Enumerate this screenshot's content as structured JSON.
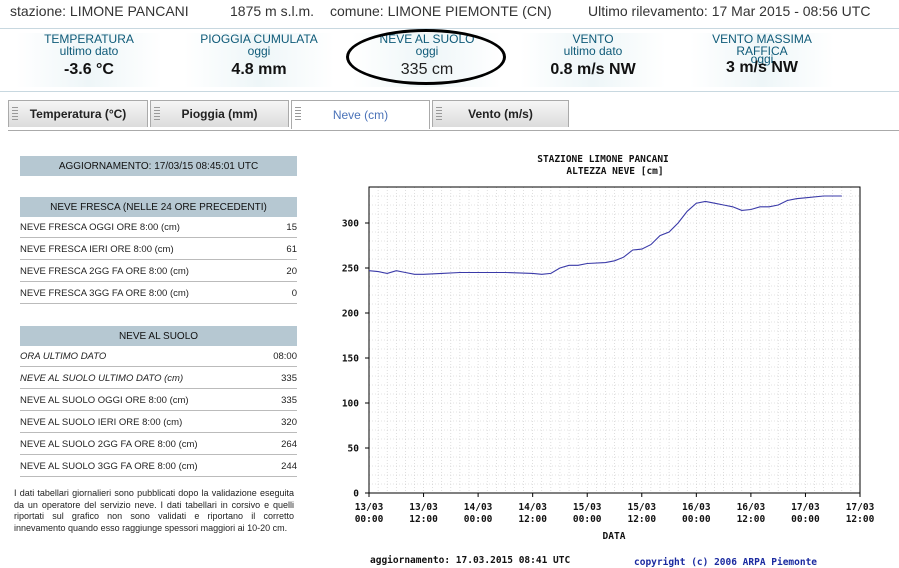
{
  "header": {
    "station": "stazione: LIMONE PANCANI",
    "altitude": "1875 m s.l.m.",
    "comune": "comune: LIMONE PIEMONTE (CN)",
    "ultimo": "Ultimo rilevamento: 17 Mar 2015 - 08:56 UTC"
  },
  "metrics": [
    {
      "title": "TEMPERATURA",
      "sub": "ultimo dato",
      "value": "-3.6 °C"
    },
    {
      "title": "PIOGGIA CUMULATA",
      "sub": "oggi",
      "value": "4.8 mm"
    },
    {
      "title": "NEVE AL SUOLO",
      "sub": "oggi",
      "value": "335 cm"
    },
    {
      "title": "VENTO",
      "sub": "ultimo dato",
      "value": "0.8 m/s NW"
    },
    {
      "title": "VENTO MASSIMA RAFFICA",
      "sub": "oggi",
      "value": "3 m/s NW"
    }
  ],
  "tabs": [
    "Temperatura (°C)",
    "Pioggia (mm)",
    "Neve (cm)",
    "Vento (m/s)"
  ],
  "left": {
    "update": "AGGIORNAMENTO: 17/03/15 08:45:01 UTC",
    "fresh_title": "NEVE FRESCA (NELLE 24 ORE PRECEDENTI)",
    "fresh_rows": [
      {
        "label": "NEVE FRESCA OGGI ORE 8:00 (cm)",
        "value": "15"
      },
      {
        "label": "NEVE FRESCA IERI ORE 8:00 (cm)",
        "value": "61"
      },
      {
        "label": "NEVE FRESCA 2GG FA ORE 8:00 (cm)",
        "value": "20"
      },
      {
        "label": "NEVE FRESCA 3GG FA ORE 8:00 (cm)",
        "value": "0"
      }
    ],
    "ground_title": "NEVE AL SUOLO",
    "ground_rows": [
      {
        "label": "ORA ULTIMO DATO",
        "value": "08:00"
      },
      {
        "label": "NEVE AL SUOLO ULTIMO DATO (cm)",
        "value": "335"
      },
      {
        "label": "NEVE AL SUOLO OGGI ORE 8:00 (cm)",
        "value": "335"
      },
      {
        "label": "NEVE AL SUOLO IERI ORE 8:00 (cm)",
        "value": "320"
      },
      {
        "label": "NEVE AL SUOLO 2GG FA ORE 8:00 (cm)",
        "value": "264"
      },
      {
        "label": "NEVE AL SUOLO 3GG FA ORE 8:00 (cm)",
        "value": "244"
      }
    ],
    "note": "I dati tabellari giornalieri sono pubblicati dopo la validazione eseguita da un operatore del servizio neve. I dati tabellari in corsivo e quelli riportati sul grafico non sono validati e riportano il corretto innevamento quando esso raggiunge spessori maggiori ai 10-20 cm."
  },
  "chart_data": {
    "type": "line",
    "title": "STAZIONE LIMONE PANCANI",
    "subtitle": "ALTEZZA NEVE [cm]",
    "xlabel": "DATA",
    "ylabel": "",
    "ylim": [
      0,
      340
    ],
    "yticks": [
      0,
      50,
      100,
      150,
      200,
      250,
      300
    ],
    "xlim": [
      "13/03 00:00",
      "17/03 12:00"
    ],
    "xticks": [
      [
        "13/03",
        "00:00"
      ],
      [
        "13/03",
        "12:00"
      ],
      [
        "14/03",
        "00:00"
      ],
      [
        "14/03",
        "12:00"
      ],
      [
        "15/03",
        "00:00"
      ],
      [
        "15/03",
        "12:00"
      ],
      [
        "16/03",
        "00:00"
      ],
      [
        "16/03",
        "12:00"
      ],
      [
        "17/03",
        "00:00"
      ],
      [
        "17/03",
        "12:00"
      ]
    ],
    "grid": true,
    "line_color": "#3a3aa8",
    "series": [
      {
        "x": [
          "13/03 00:00",
          "13/03 02:00",
          "13/03 04:00",
          "13/03 06:00",
          "13/03 08:00",
          "13/03 10:00",
          "13/03 12:00",
          "13/03 16:00",
          "13/03 20:00",
          "14/03 00:00",
          "14/03 06:00",
          "14/03 12:00",
          "14/03 14:00",
          "14/03 16:00",
          "14/03 18:00",
          "14/03 20:00",
          "14/03 22:00",
          "15/03 00:00",
          "15/03 04:00",
          "15/03 06:00",
          "15/03 08:00",
          "15/03 10:00",
          "15/03 12:00",
          "15/03 14:00",
          "15/03 16:00",
          "15/03 18:00",
          "15/03 20:00",
          "15/03 22:00",
          "16/03 00:00",
          "16/03 02:00",
          "16/03 04:00",
          "16/03 06:00",
          "16/03 08:00",
          "16/03 10:00",
          "16/03 12:00",
          "16/03 14:00",
          "16/03 16:00",
          "16/03 18:00",
          "16/03 20:00",
          "16/03 22:00",
          "17/03 00:00",
          "17/03 04:00",
          "17/03 08:00"
        ],
        "values": [
          247,
          246,
          244,
          247,
          245,
          243,
          243,
          244,
          245,
          245,
          245,
          244,
          243,
          244,
          250,
          253,
          253,
          255,
          256,
          258,
          262,
          270,
          271,
          276,
          286,
          290,
          300,
          313,
          322,
          324,
          322,
          320,
          318,
          314,
          315,
          318,
          318,
          320,
          325,
          327,
          328,
          330,
          330
        ]
      }
    ],
    "footer_update": "aggiornamento: 17.03.2015 08:41 UTC",
    "copyright": "copyright (c) 2006 ARPA Piemonte"
  }
}
